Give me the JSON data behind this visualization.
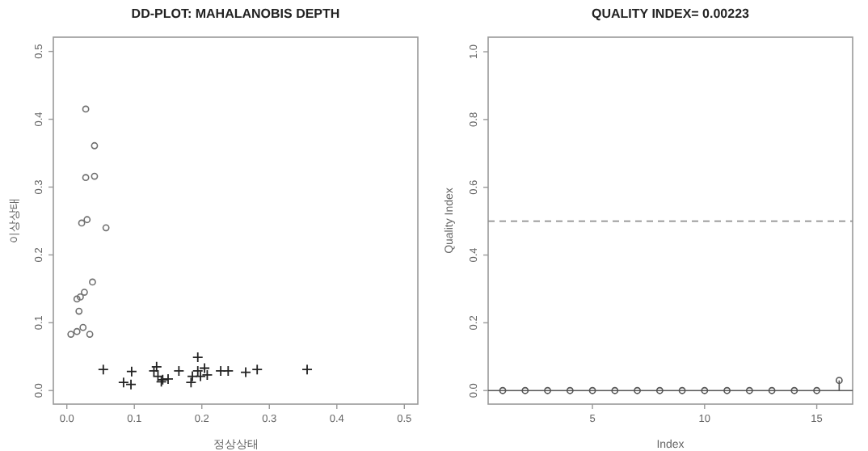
{
  "chart_data": [
    {
      "type": "scatter",
      "title": "DD-PLOT: MAHALANOBIS DEPTH",
      "xlabel": "정상상태",
      "ylabel": "이상상태",
      "xlim": [
        -0.02,
        0.52
      ],
      "ylim": [
        -0.02,
        0.521
      ],
      "xticks": [
        {
          "value": 0,
          "label": "0.0"
        },
        {
          "value": 0.1,
          "label": "0.1"
        },
        {
          "value": 0.2,
          "label": "0.2"
        },
        {
          "value": 0.3,
          "label": "0.3"
        },
        {
          "value": 0.4,
          "label": "0.4"
        },
        {
          "value": 0.5,
          "label": "0.5"
        }
      ],
      "yticks": [
        {
          "value": 0,
          "label": "0.0"
        },
        {
          "value": 0.1,
          "label": "0.1"
        },
        {
          "value": 0.2,
          "label": "0.2"
        },
        {
          "value": 0.3,
          "label": "0.3"
        },
        {
          "value": 0.4,
          "label": "0.4"
        },
        {
          "value": 0.5,
          "label": "0.5"
        }
      ],
      "series": [
        {
          "color": "#707070",
          "marker": "circle",
          "x": [
            0.028,
            0.041,
            0.028,
            0.041,
            0.022,
            0.03,
            0.058,
            0.038,
            0.015,
            0.02,
            0.026,
            0.018,
            0.006,
            0.015,
            0.024,
            0.034
          ],
          "values": [
            0.415,
            0.361,
            0.314,
            0.316,
            0.247,
            0.252,
            0.24,
            0.16,
            0.135,
            0.138,
            0.145,
            0.117,
            0.083,
            0.087,
            0.093,
            0.083
          ]
        },
        {
          "color": "#222222",
          "marker": "cross",
          "x": [
            0.054,
            0.084,
            0.095,
            0.096,
            0.129,
            0.133,
            0.135,
            0.14,
            0.142,
            0.15,
            0.166,
            0.186,
            0.184,
            0.194,
            0.194,
            0.198,
            0.204,
            0.208,
            0.228,
            0.239,
            0.265,
            0.282,
            0.356
          ],
          "values": [
            0.031,
            0.012,
            0.009,
            0.028,
            0.029,
            0.035,
            0.021,
            0.013,
            0.016,
            0.017,
            0.029,
            0.021,
            0.012,
            0.049,
            0.029,
            0.021,
            0.033,
            0.023,
            0.029,
            0.029,
            0.027,
            0.031,
            0.031
          ]
        }
      ]
    },
    {
      "type": "lollipop",
      "title": "QUALITY INDEX= 0.00223",
      "xlabel": "Index",
      "ylabel": "Quality Index",
      "xlim": [
        0.35,
        16.6
      ],
      "ylim": [
        -0.04,
        1.043
      ],
      "xticks": [
        5,
        10,
        15
      ],
      "yticks": [
        {
          "value": 0,
          "label": "0.0"
        },
        {
          "value": 0.2,
          "label": "0.2"
        },
        {
          "value": 0.4,
          "label": "0.4"
        },
        {
          "value": 0.6,
          "label": "0.6"
        },
        {
          "value": 0.8,
          "label": "0.8"
        },
        {
          "value": 1,
          "label": "1.0"
        }
      ],
      "ref_lines": [
        {
          "axis": "y",
          "value": 0.5,
          "color": "#909090",
          "line_style": "dashed"
        },
        {
          "axis": "y",
          "value": 0,
          "color": "#555555",
          "line_style": "solid"
        }
      ],
      "series": [
        {
          "color": "#555555",
          "marker": "circle",
          "x": [
            1,
            2,
            3,
            4,
            5,
            6,
            7,
            8,
            9,
            10,
            11,
            12,
            13,
            14,
            15,
            16
          ],
          "values": [
            0,
            0,
            0,
            0,
            0,
            0,
            0,
            0,
            0,
            0,
            0,
            0,
            0,
            0,
            0,
            0.03
          ]
        }
      ]
    }
  ]
}
